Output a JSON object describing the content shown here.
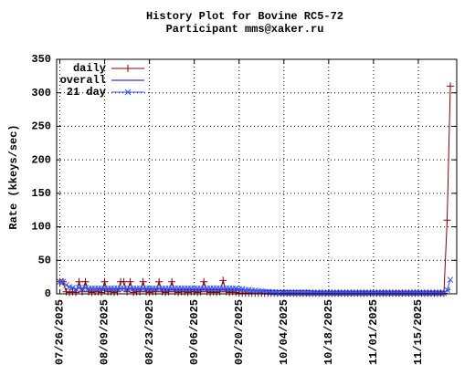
{
  "chart_data": {
    "type": "line",
    "title": "History Plot for Bovine RC5-72",
    "subtitle": "Participant mms@xaker.ru",
    "ylabel": "Rate (kkeys/sec)",
    "x": [
      "2025-07-26",
      "2025-07-27",
      "2025-07-28",
      "2025-07-29",
      "2025-07-30",
      "2025-07-31",
      "2025-08-01",
      "2025-08-02",
      "2025-08-03",
      "2025-08-04",
      "2025-08-05",
      "2025-08-06",
      "2025-08-07",
      "2025-08-08",
      "2025-08-09",
      "2025-08-10",
      "2025-08-11",
      "2025-08-12",
      "2025-08-13",
      "2025-08-14",
      "2025-08-15",
      "2025-08-16",
      "2025-08-17",
      "2025-08-18",
      "2025-08-19",
      "2025-08-20",
      "2025-08-21",
      "2025-08-22",
      "2025-08-23",
      "2025-08-24",
      "2025-08-25",
      "2025-08-26",
      "2025-08-27",
      "2025-08-28",
      "2025-08-29",
      "2025-08-30",
      "2025-08-31",
      "2025-09-01",
      "2025-09-02",
      "2025-09-03",
      "2025-09-04",
      "2025-09-05",
      "2025-09-06",
      "2025-09-07",
      "2025-09-08",
      "2025-09-09",
      "2025-09-10",
      "2025-09-11",
      "2025-09-12",
      "2025-09-13",
      "2025-09-14",
      "2025-09-15",
      "2025-09-16",
      "2025-09-17",
      "2025-09-18",
      "2025-09-19",
      "2025-09-20",
      "2025-09-21",
      "2025-09-22",
      "2025-09-23",
      "2025-09-24",
      "2025-09-25",
      "2025-09-26",
      "2025-09-27",
      "2025-09-28",
      "2025-09-29",
      "2025-09-30",
      "2025-10-01",
      "2025-10-02",
      "2025-10-03",
      "2025-10-04",
      "2025-10-05",
      "2025-10-06",
      "2025-10-07",
      "2025-10-08",
      "2025-10-09",
      "2025-10-10",
      "2025-10-11",
      "2025-10-12",
      "2025-10-13",
      "2025-10-14",
      "2025-10-15",
      "2025-10-16",
      "2025-10-17",
      "2025-10-18",
      "2025-10-19",
      "2025-10-20",
      "2025-10-21",
      "2025-10-22",
      "2025-10-23",
      "2025-10-24",
      "2025-10-25",
      "2025-10-26",
      "2025-10-27",
      "2025-10-28",
      "2025-10-29",
      "2025-10-30",
      "2025-10-31",
      "2025-11-01",
      "2025-11-02",
      "2025-11-03",
      "2025-11-04",
      "2025-11-05",
      "2025-11-06",
      "2025-11-07",
      "2025-11-08",
      "2025-11-09",
      "2025-11-10",
      "2025-11-11",
      "2025-11-12",
      "2025-11-13",
      "2025-11-14",
      "2025-11-15",
      "2025-11-16",
      "2025-11-17",
      "2025-11-18",
      "2025-11-19",
      "2025-11-20",
      "2025-11-21",
      "2025-11-22",
      "2025-11-23",
      "2025-11-24",
      "2025-11-25"
    ],
    "series": [
      {
        "name": "daily",
        "color": "#8b0000",
        "marker": "plus",
        "values": [
          18,
          18,
          3,
          2,
          3,
          2,
          18,
          3,
          18,
          3,
          2,
          3,
          3,
          2,
          18,
          3,
          3,
          2,
          3,
          18,
          18,
          3,
          18,
          2,
          3,
          3,
          18,
          3,
          2,
          3,
          3,
          18,
          3,
          2,
          3,
          18,
          3,
          2,
          3,
          3,
          2,
          3,
          3,
          2,
          3,
          18,
          3,
          2,
          3,
          2,
          3,
          20,
          3,
          2,
          3,
          2,
          1,
          1,
          1,
          1,
          1,
          1,
          1,
          1,
          1,
          1,
          1,
          1,
          1,
          1,
          1,
          1,
          1,
          1,
          1,
          1,
          1,
          1,
          1,
          1,
          1,
          1,
          1,
          1,
          1,
          1,
          1,
          1,
          1,
          1,
          1,
          1,
          1,
          1,
          1,
          1,
          1,
          1,
          1,
          1,
          1,
          1,
          1,
          1,
          1,
          1,
          1,
          1,
          1,
          1,
          1,
          1,
          1,
          1,
          1,
          1,
          1,
          1,
          1,
          1,
          1,
          110,
          310
        ]
      },
      {
        "name": "overall",
        "color": "#0000cd",
        "marker": "none",
        "values": [
          18,
          18,
          13,
          10,
          9,
          7,
          9,
          8,
          9,
          8,
          8,
          8,
          7,
          7,
          7,
          8,
          7,
          7,
          7,
          7,
          8,
          7,
          7,
          7,
          7,
          7,
          7,
          7,
          7,
          7,
          7,
          7,
          7,
          6,
          6,
          6,
          6,
          6,
          6,
          6,
          6,
          6,
          6,
          6,
          6,
          6,
          6,
          6,
          6,
          6,
          6,
          6,
          6,
          6,
          6,
          6,
          6,
          6,
          6,
          6,
          6,
          5,
          5,
          5,
          5,
          5,
          5,
          5,
          5,
          5,
          5,
          5,
          5,
          5,
          5,
          5,
          5,
          5,
          5,
          4,
          4,
          4,
          4,
          4,
          4,
          4,
          4,
          4,
          4,
          4,
          4,
          4,
          4,
          4,
          4,
          4,
          4,
          4,
          4,
          4,
          4,
          4,
          4,
          4,
          4,
          4,
          4,
          4,
          4,
          4,
          4,
          4,
          4,
          4,
          4,
          4,
          3,
          3,
          3,
          3,
          3,
          4,
          7
        ]
      },
      {
        "name": "21 day",
        "color": "#3355ff",
        "marker": "cross",
        "values": [
          18,
          18,
          13,
          10,
          9,
          7,
          9,
          8,
          9,
          8,
          8,
          8,
          8,
          8,
          8,
          8,
          8,
          8,
          8,
          8,
          8,
          8,
          8,
          8,
          8,
          8,
          8,
          8,
          8,
          8,
          8,
          8,
          8,
          8,
          8,
          8,
          8,
          8,
          8,
          8,
          8,
          8,
          8,
          8,
          8,
          8,
          8,
          8,
          8,
          8,
          8,
          8,
          8,
          8,
          8,
          8,
          7,
          7,
          6,
          6,
          5,
          5,
          4,
          4,
          3,
          3,
          2,
          2,
          2,
          1,
          1,
          1,
          1,
          1,
          1,
          1,
          1,
          1,
          1,
          1,
          1,
          1,
          1,
          1,
          1,
          1,
          1,
          1,
          1,
          1,
          1,
          1,
          1,
          1,
          1,
          1,
          1,
          1,
          1,
          1,
          1,
          1,
          1,
          1,
          1,
          1,
          1,
          1,
          1,
          1,
          1,
          1,
          1,
          1,
          1,
          1,
          1,
          1,
          1,
          1,
          1,
          6,
          21
        ]
      }
    ],
    "xlim": [
      "2025-07-25",
      "2025-11-27"
    ],
    "xticks": [
      {
        "value": "2025-07-26",
        "label": "07/26/2025"
      },
      {
        "value": "2025-08-09",
        "label": "08/09/2025"
      },
      {
        "value": "2025-08-23",
        "label": "08/23/2025"
      },
      {
        "value": "2025-09-06",
        "label": "09/06/2025"
      },
      {
        "value": "2025-09-20",
        "label": "09/20/2025"
      },
      {
        "value": "2025-10-04",
        "label": "10/04/2025"
      },
      {
        "value": "2025-10-18",
        "label": "10/18/2025"
      },
      {
        "value": "2025-11-01",
        "label": "11/01/2025"
      },
      {
        "value": "2025-11-15",
        "label": "11/15/2025"
      }
    ],
    "ylim": [
      0,
      350
    ],
    "yticks": [
      0,
      50,
      100,
      150,
      200,
      250,
      300,
      350
    ],
    "grid": true,
    "legend": "top-left"
  }
}
